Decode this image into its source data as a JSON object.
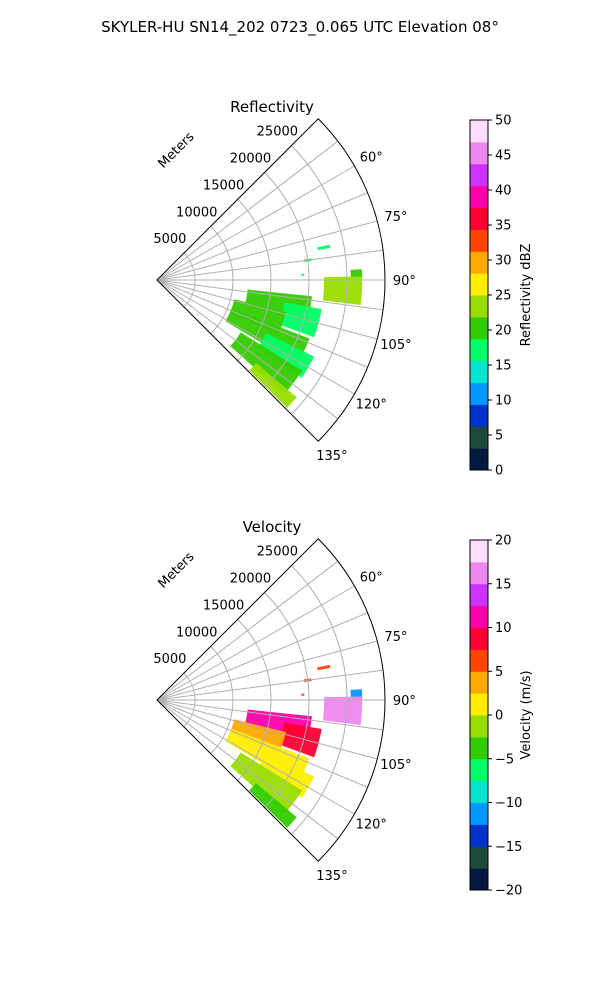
{
  "figure": {
    "suptitle": "SKYLER-HU  SN14_202  0723_0.065 UTC Elevation 08°"
  },
  "chart_data": [
    {
      "type": "heatmap",
      "projection": "polar-sector",
      "title": "Reflectivity",
      "radial_label": "Meters",
      "radial_ticks": [
        5000,
        10000,
        15000,
        20000,
        25000
      ],
      "radial_tick_labels": [
        "5000",
        "10000",
        "15000",
        "20000",
        "25000"
      ],
      "radial_range": [
        0,
        30000
      ],
      "azimuth_range_deg": [
        45,
        135
      ],
      "azimuth_ticks": [
        60,
        75,
        90,
        105,
        120,
        135
      ],
      "azimuth_tick_labels": [
        "60°",
        "75°",
        "90°",
        "105°",
        "120°",
        "135°"
      ],
      "grid": true,
      "colorbar": {
        "label": "Reflectivity dBZ",
        "min": 0,
        "max": 50,
        "ticks": [
          0,
          5,
          10,
          15,
          20,
          25,
          30,
          35,
          40,
          45,
          50
        ],
        "tick_labels": [
          "0",
          "5",
          "10",
          "15",
          "20",
          "25",
          "30",
          "35",
          "40",
          "45",
          "50"
        ],
        "colors": [
          "#051a40",
          "#1d4a3a",
          "#0033cc",
          "#0099ff",
          "#00e5d0",
          "#00ff66",
          "#33cc00",
          "#99dd00",
          "#ffee00",
          "#ffaa00",
          "#ff4400",
          "#ff0033",
          "#ff00aa",
          "#cc33ff",
          "#ee88ee",
          "#ffddff"
        ]
      },
      "echoes": [
        {
          "az_start": 78.5,
          "az_end": 79.5,
          "r_start": 21500,
          "r_end": 23200,
          "value": 16
        },
        {
          "az_start": 82.0,
          "az_end": 83.0,
          "r_start": 19500,
          "r_end": 20500,
          "value": 18
        },
        {
          "az_start": 87.5,
          "az_end": 88.3,
          "r_start": 19000,
          "r_end": 19400,
          "value": 16
        },
        {
          "az_start": 87.0,
          "az_end": 89.5,
          "r_start": 25500,
          "r_end": 27000,
          "value": 20
        },
        {
          "az_start": 89.0,
          "az_end": 97.0,
          "r_start": 22000,
          "r_end": 27000,
          "value": 22
        },
        {
          "az_start": 96.0,
          "az_end": 106.0,
          "r_start": 12000,
          "r_end": 20500,
          "value": 20
        },
        {
          "az_start": 100.0,
          "az_end": 110.0,
          "r_start": 17000,
          "r_end": 22000,
          "value": 18
        },
        {
          "az_start": 104.0,
          "az_end": 114.0,
          "r_start": 10500,
          "r_end": 17500,
          "value": 19
        },
        {
          "az_start": 111.0,
          "az_end": 121.0,
          "r_start": 10500,
          "r_end": 21500,
          "value": 20
        },
        {
          "az_start": 116.0,
          "az_end": 124.0,
          "r_start": 16000,
          "r_end": 23000,
          "value": 18
        },
        {
          "az_start": 122.0,
          "az_end": 132.0,
          "r_start": 13000,
          "r_end": 22500,
          "value": 21
        },
        {
          "az_start": 130.0,
          "az_end": 134.5,
          "r_start": 17000,
          "r_end": 24000,
          "value": 24
        }
      ]
    },
    {
      "type": "heatmap",
      "projection": "polar-sector",
      "title": "Velocity",
      "radial_label": "Meters",
      "radial_ticks": [
        5000,
        10000,
        15000,
        20000,
        25000
      ],
      "radial_tick_labels": [
        "5000",
        "10000",
        "15000",
        "20000",
        "25000"
      ],
      "radial_range": [
        0,
        30000
      ],
      "azimuth_range_deg": [
        45,
        135
      ],
      "azimuth_ticks": [
        60,
        75,
        90,
        105,
        120,
        135
      ],
      "azimuth_tick_labels": [
        "60°",
        "75°",
        "90°",
        "105°",
        "120°",
        "135°"
      ],
      "grid": true,
      "colorbar": {
        "label": "Velocity (m/s)",
        "min": -20,
        "max": 20,
        "ticks": [
          -20,
          -15,
          -10,
          -5,
          0,
          5,
          10,
          15,
          20
        ],
        "tick_labels": [
          "−20",
          "−15",
          "−10",
          "−5",
          "0",
          "5",
          "10",
          "15",
          "20"
        ],
        "colors": [
          "#051a40",
          "#1d4a3a",
          "#0033cc",
          "#0099ff",
          "#00e5d0",
          "#00ff66",
          "#33cc00",
          "#99dd00",
          "#ffee00",
          "#ffaa00",
          "#ff4400",
          "#ff0033",
          "#ff00aa",
          "#cc33ff",
          "#ee88ee",
          "#ffddff"
        ]
      },
      "echoes": [
        {
          "az_start": 78.5,
          "az_end": 79.5,
          "r_start": 21500,
          "r_end": 23200,
          "value": 6
        },
        {
          "az_start": 82.0,
          "az_end": 83.0,
          "r_start": 19500,
          "r_end": 20500,
          "value": 6
        },
        {
          "az_start": 87.5,
          "az_end": 88.3,
          "r_start": 19000,
          "r_end": 19400,
          "value": 6
        },
        {
          "az_start": 87.0,
          "az_end": 89.5,
          "r_start": 25500,
          "r_end": 27000,
          "value": -12
        },
        {
          "az_start": 89.0,
          "az_end": 97.0,
          "r_start": 22000,
          "r_end": 27000,
          "value": 15
        },
        {
          "az_start": 96.0,
          "az_end": 106.0,
          "r_start": 12000,
          "r_end": 20500,
          "value": 10
        },
        {
          "az_start": 100.0,
          "az_end": 110.0,
          "r_start": 17000,
          "r_end": 22000,
          "value": 8
        },
        {
          "az_start": 104.0,
          "az_end": 114.0,
          "r_start": 10500,
          "r_end": 17500,
          "value": 3
        },
        {
          "az_start": 111.0,
          "az_end": 121.0,
          "r_start": 10500,
          "r_end": 21500,
          "value": 1
        },
        {
          "az_start": 116.0,
          "az_end": 124.0,
          "r_start": 16000,
          "r_end": 23000,
          "value": 2
        },
        {
          "az_start": 122.0,
          "az_end": 132.0,
          "r_start": 13000,
          "r_end": 22500,
          "value": -1
        },
        {
          "az_start": 130.0,
          "az_end": 134.5,
          "r_start": 17000,
          "r_end": 24000,
          "value": -3
        }
      ]
    }
  ]
}
